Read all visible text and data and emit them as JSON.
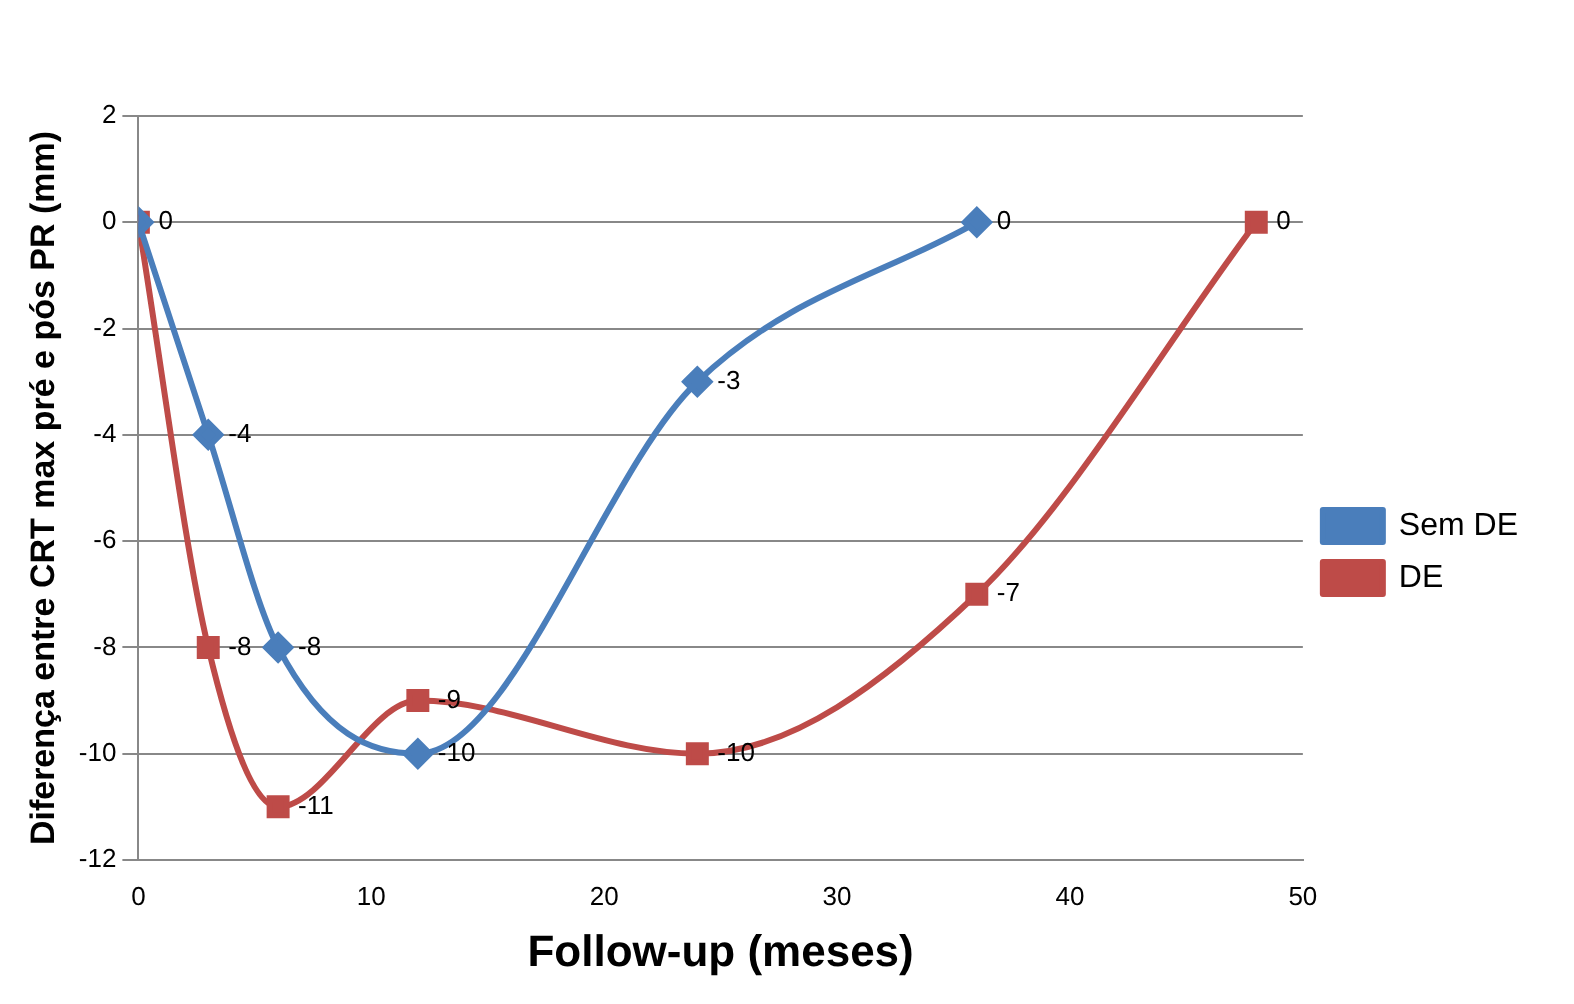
{
  "chart_data": {
    "type": "line",
    "xlabel": "Follow-up (meses)",
    "ylabel": "Diferença entre CRT max pré e pós PR (mm)",
    "series": [
      {
        "name": "Sem DE",
        "color": "#4a7ebb",
        "marker": "diamond",
        "x": [
          0,
          3,
          6,
          12,
          24,
          36
        ],
        "values": [
          0,
          -4,
          -8,
          -10,
          -3,
          0
        ],
        "value_labels": [
          "0",
          "-4",
          "-8",
          "-10",
          "-3",
          "0"
        ]
      },
      {
        "name": "DE",
        "color": "#be4b48",
        "marker": "square",
        "x": [
          0,
          3,
          6,
          12,
          24,
          36,
          48
        ],
        "values": [
          0,
          -8,
          -11,
          -9,
          -10,
          -7,
          0
        ],
        "value_labels": [
          null,
          "-8",
          "-11",
          "-9",
          "-10",
          "-7",
          "0"
        ]
      }
    ],
    "xlim": [
      0,
      50
    ],
    "xticks": [
      0,
      10,
      20,
      30,
      40,
      50
    ],
    "ylim": [
      -12,
      2
    ],
    "yticks": [
      -12,
      -10,
      -8,
      -6,
      -4,
      -2,
      0,
      2
    ],
    "grid": "y",
    "legend": "right"
  }
}
